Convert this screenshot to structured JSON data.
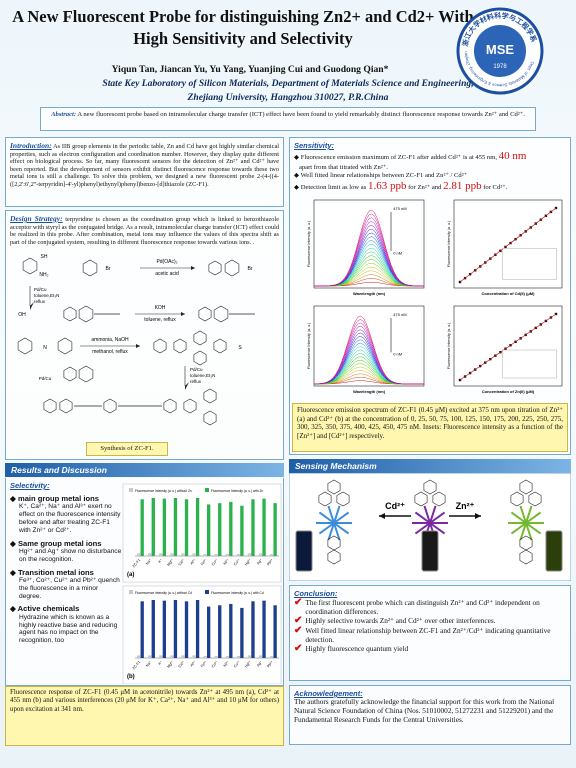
{
  "header": {
    "title": "A New Fluorescent Probe for distinguishing Zn2+ and Cd2+ With High Sensitivity and Selectivity",
    "authors": "Yiqun Tan, Jiancan Yu, Yu Yang, Yuanjing Cui and Guodong Qian*",
    "affiliation": "State Key Laboratory of Silicon Materials, Department of Materials Science and Engineering,",
    "address": "Zhejiang University, Hangzhou 310027, P.R.China",
    "logo": {
      "initials": "MSE",
      "year": "1978",
      "ring_text": "浙江大学材料科学与工程学系",
      "ring_text_en": "Dept. of Materials Science & Engineering, Zhejiang Univ."
    }
  },
  "abstract": {
    "label": "Abstract:",
    "text": "A new fluorescent probe based on intramolecular charge transfer (ICT) effect have been found to yield remarkably distinct fluorescence response towards Zn²⁺ and Cd²⁺."
  },
  "introduction": {
    "label": "Introduction:",
    "text": "As IIB group elements in the periodic table, Zn and Cd have got highly similar chemical properties, such as electron configuration and coordination number. However, they display quite different effect on biological process. So far, many fluorescent sensors for the detection of Zn²⁺ and Cd²⁺ have been reported. But the development of sensors exhibit distinct fluorescence response towards these two metal ions is still a challenge. To solve this problem, we designed a new fluorescent probe 2-(4-((4-([2,2':6',2''-terpyridin]-4'-yl)phenyl)ethynyl)phenyl)benzo-[d]thiazole (ZC-F1)."
  },
  "design": {
    "label": "Design Strategy:",
    "text": "terpyridine is chosen as the coordination group which is linked to benzothiazole acceptor with styryl as the conjugated bridge. As a result, intramolecular charge transfer (ICT) effect could be realized in this probe. After combination, metal ions may influence the values of this spectra shift as part of the conjugated system, resulting in different fluorescence response towards various ions. .",
    "scheme": {
      "step1": [
        "Pd(OAc)₂",
        "acetic acid"
      ],
      "step2": [
        "Pd/Cu",
        "toluene,Et₃N",
        "reflux"
      ],
      "step3": [
        "KOH",
        "toluene, reflux"
      ],
      "step4": [
        "Pd/Cu",
        "toluene,Et₃N",
        "reflux"
      ],
      "step5": [
        "ammonia, NaOH",
        "methanol, reflux"
      ],
      "step6": [
        "Pd/Cu",
        "toluene,Et₃N",
        "reflux"
      ],
      "reagents": [
        "SH",
        "NH₂",
        "Br",
        "Br",
        "OH",
        "N",
        "S"
      ]
    },
    "caption": "Synthesis of ZC-F1."
  },
  "results": {
    "header": "Results and Discussion",
    "selectivity_label": "Selectivity:",
    "items": [
      {
        "title": "main group metal ions",
        "text": "K⁺, Ca²⁺, Na⁺ and Al³⁺ exert no effect on the fluorescence intensity before and after treating ZC-F1 with Zn²⁺ or Cd²⁺."
      },
      {
        "title": "Same group metal ions",
        "text": "Hg²⁺ and Ag⁺ show no disturbance on the recognition."
      },
      {
        "title": "Transition metal ions",
        "text": "Fe³⁺, Co²⁺, Cu²⁺ and Pb²⁺ quench the fluorescence in a minor degree."
      },
      {
        "title": "Active chemicals",
        "text": "Hydrazine which is known as a highly reactive base and reducing agent has no impact on the recognition, too"
      }
    ],
    "chart_a": {
      "panel": "(a)",
      "categories": [
        "ZC-F1",
        "Na⁺",
        "K⁺",
        "Mg²⁺",
        "Ca²⁺",
        "Al³⁺",
        "Fe³⁺",
        "Co²⁺",
        "Ni²⁺",
        "Cu²⁺",
        "Hg²⁺",
        "Ag⁺",
        "Pb²⁺"
      ],
      "series": [
        {
          "name": "Fluorescence Intensity (a. u.) without Zn",
          "color": "#c8c8c8",
          "values": [
            4,
            4,
            4,
            4,
            4,
            4,
            3,
            3,
            3,
            3,
            4,
            4,
            3
          ]
        },
        {
          "name": "Fluorescence Intensity (a. u.) with Zn",
          "color": "#2bb24c",
          "values": [
            88,
            90,
            89,
            90,
            88,
            90,
            80,
            82,
            84,
            78,
            88,
            89,
            82
          ]
        }
      ]
    },
    "chart_b": {
      "panel": "(b)",
      "categories": [
        "ZC-F1",
        "Na⁺",
        "K⁺",
        "Mg²⁺",
        "Ca²⁺",
        "Al³⁺",
        "Fe³⁺",
        "Co²⁺",
        "Ni²⁺",
        "Cu²⁺",
        "Hg²⁺",
        "Ag⁺",
        "Pb²⁺"
      ],
      "series": [
        {
          "name": "Fluorescence Intensity (a. u.) without Cd",
          "color": "#c8c8c8",
          "values": [
            4,
            4,
            4,
            4,
            4,
            4,
            3,
            3,
            3,
            3,
            4,
            4,
            3
          ]
        },
        {
          "name": "Fluorescence Intensity (a. u.) with Cd",
          "color": "#1d3f8f",
          "values": [
            86,
            88,
            87,
            88,
            86,
            88,
            78,
            80,
            82,
            76,
            86,
            87,
            80
          ]
        }
      ]
    },
    "caption": "Fluorescence response of ZC-F1 (0.45 μM in acetonitrile) towards Zn²⁺ at 495 nm (a), Cd²⁺ at 455 nm (b) and various interferences (20 μM for K⁺, Ca²⁺, Na⁺ and Al³⁺ and 10 μM for others) upon excitation at 341 nm."
  },
  "sensitivity": {
    "label": "Sensitivity:",
    "b1_a": "Fluorescence emission maximum of ZC-F1 after added Cd²⁺ is at 455 nm,",
    "b1_big": "40 nm",
    "b1_b": "apart from that titrated with Zn²⁺.",
    "b2": "Well fitted linear relationships between ZC-F1 and Zn²⁺ / Cd²⁺",
    "b3_a": "Detection limit as low as",
    "b3_big1": "1.63 ppb",
    "b3_b": "for Zn²⁺ and",
    "b3_big2": "2.81 ppb",
    "b3_c": "for Cd²⁺.",
    "plots": {
      "y_label": "Fluorescence Intensity (a. u.)",
      "x_label": "Wavelength (nm)",
      "top_conc": "475 nM",
      "zero_conc": "0 nM",
      "cd_x_label": "Concentration of Cd(II) (μM)",
      "zn_x_label": "Concentration of Zn(II) (μM)"
    },
    "caption": "Fluorescence emission spectrum of ZC-F1 (0.45 μM) excited at 375 nm upon titration of Zn²⁺ (a) and Cd²⁺ (b) at the concentration of 0, 25, 50, 75, 100, 125, 150, 175, 200, 225, 250, 275, 300, 325, 350, 375, 400, 425, 450, 475 nM. Insets: Fluorescence intensity as a function of the [Zn²⁺] and [Cd²⁺] respectively."
  },
  "mechanism": {
    "header": "Sensing Mechanism",
    "cd": "Cd²⁺",
    "zn": "Zn²⁺"
  },
  "conclusion": {
    "label": "Conclusion:",
    "items": [
      "The first fluorescent probe which can distinguish Zn²⁺ and Cd²⁺ independent on coordination differences.",
      "Highly selective towards Zn²⁺ and Cd²⁺ over other interferences.",
      "Well fitted linear relationship between ZC-F1 and Zn²⁺/Cd²⁺ indicating quantitative detection.",
      "Highly fluorescence quantum yield"
    ]
  },
  "acknowledgement": {
    "label": "Acknowledgement:",
    "text": "The authors gratefully acknowledge the financial support for this work from the National Natural Science Foundation of China (Nos. 51010002, 51272231 and 51229201) and the Fundamental Research Funds for the Central Universities."
  }
}
